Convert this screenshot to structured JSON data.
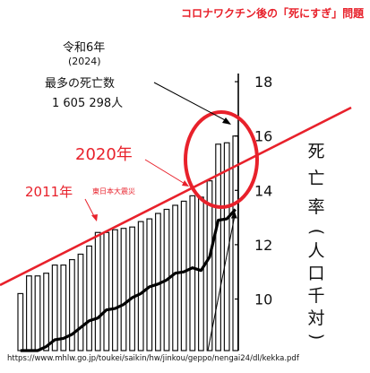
{
  "header": {
    "title": "コロナワクチン後の「死にすぎ」問題"
  },
  "annotation": {
    "line1": "令和6年",
    "line2": "(2024)",
    "line3": "最多の死亡数",
    "line4": "1 605 298人",
    "label_2020": "2020年",
    "label_2011": "2011年",
    "label_quake": "東日本大震災"
  },
  "axis": {
    "ylabel_chars": [
      "死",
      "亡",
      "率",
      "(",
      "人",
      "口",
      "千",
      "対",
      ")"
    ]
  },
  "source": "https://www.mhlw.go.jp/toukei/saikin/hw/jinkou/geppo/nengai24/dl/kekka.pdf",
  "chart_data": {
    "type": "bar",
    "y_ticks": [
      10,
      12,
      14,
      16,
      18
    ],
    "ylim": [
      8.3,
      18.3
    ],
    "bar_values": [
      10.2,
      10.85,
      10.85,
      10.95,
      11.25,
      11.25,
      11.45,
      11.65,
      11.95,
      12.45,
      12.45,
      12.55,
      12.6,
      12.65,
      12.85,
      12.95,
      13.15,
      13.3,
      13.45,
      13.6,
      13.8,
      13.75,
      14.35,
      15.7,
      15.75,
      16.0
    ],
    "line_values": [
      7.5,
      8.05,
      8.1,
      8.25,
      8.5,
      8.55,
      8.7,
      8.95,
      9.2,
      9.3,
      9.6,
      9.65,
      9.8,
      10.05,
      10.2,
      10.45,
      10.55,
      10.7,
      10.95,
      11.0,
      11.15,
      11.05,
      11.55,
      12.9,
      12.95,
      13.3
    ],
    "series_colors": {
      "bars": "#111111",
      "line": "#000000",
      "trend": "#e8212b",
      "highlight": "#e8212b"
    }
  }
}
